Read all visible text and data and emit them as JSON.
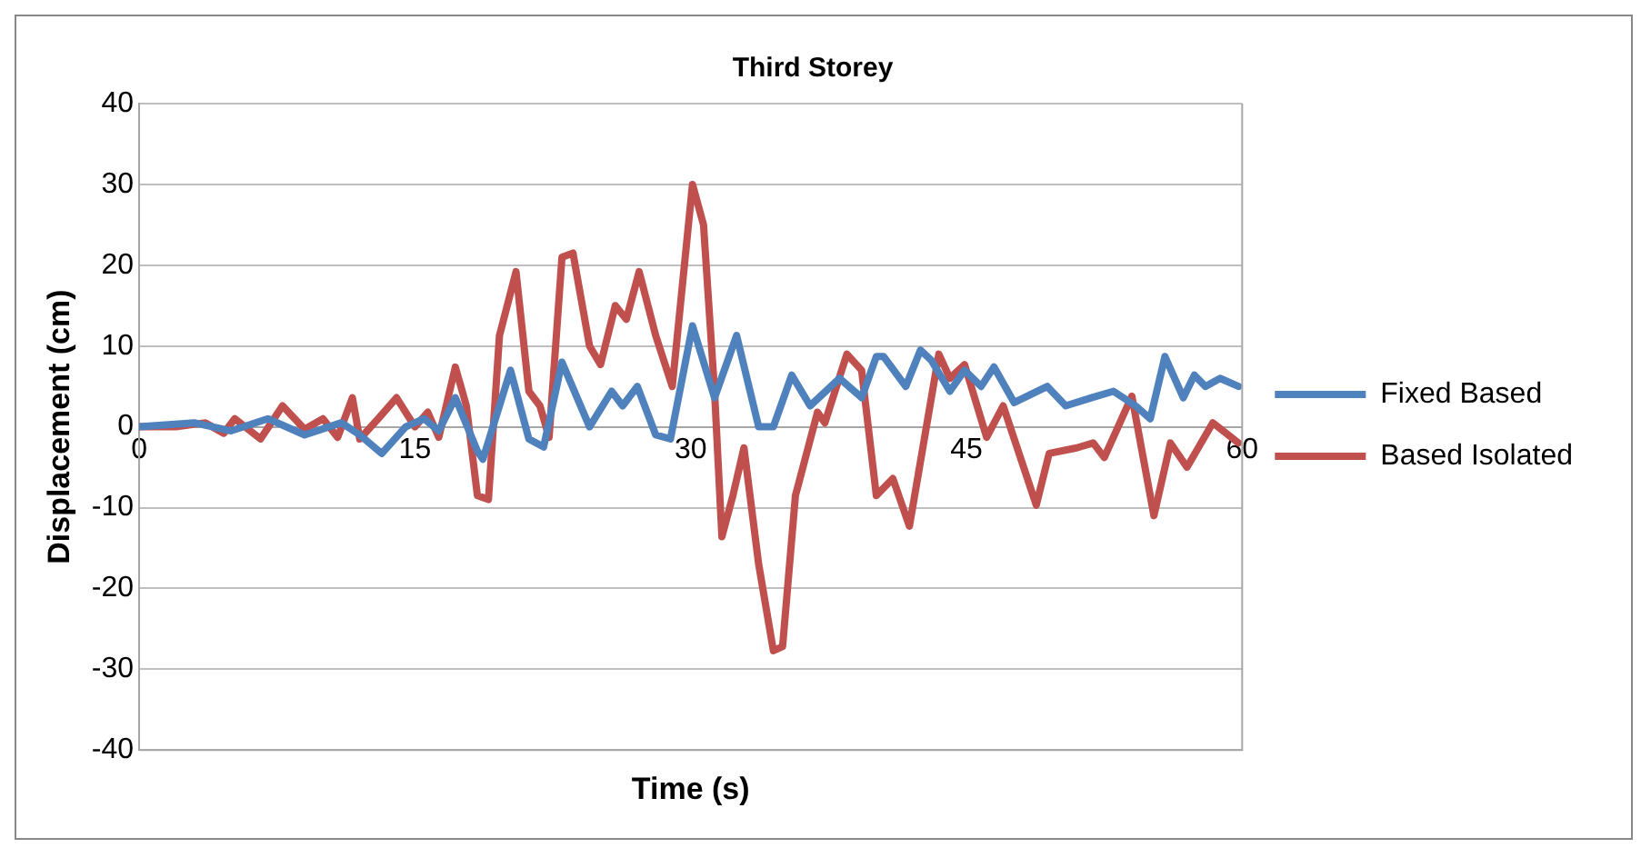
{
  "chart_data": {
    "type": "line",
    "title": "Third Storey",
    "xlabel": "Time (s)",
    "ylabel": "Displacement (cm)",
    "xlim": [
      0,
      60
    ],
    "xticks": [
      0,
      15,
      30,
      45,
      60
    ],
    "ylim": [
      -40,
      40
    ],
    "yticks": [
      -40,
      -30,
      -20,
      -10,
      0,
      10,
      20,
      30,
      40
    ],
    "grid": "y",
    "legend": "right",
    "marker": "none",
    "line_style": "solid",
    "series": [
      {
        "name": "Fixed Based",
        "color": "#4f81bd",
        "x": [
          0,
          3,
          5,
          7,
          9,
          11,
          12,
          13.2,
          14.5,
          15.5,
          16.3,
          17.2,
          18.4,
          18.7,
          20.2,
          21.2,
          22,
          23,
          24.5,
          25.7,
          26.3,
          27.1,
          28.1,
          28.9,
          30.1,
          31.3,
          32.5,
          33.7,
          34.5,
          35.5,
          36.5,
          38.1,
          39.3,
          40.1,
          40.5,
          41.7,
          42.5,
          43.1,
          44.1,
          44.9,
          45.8,
          46.5,
          47.6,
          49.4,
          50.4,
          51.8,
          53,
          54.2,
          55,
          55.8,
          56.8,
          57.4,
          58,
          58.8,
          59.8
        ],
        "values": [
          0,
          0.5,
          -0.5,
          1,
          -1,
          0.5,
          -1,
          -3.3,
          0,
          1,
          -0.5,
          3.6,
          -3,
          -4,
          7,
          -1.5,
          -2.5,
          8,
          0,
          4.4,
          2.6,
          5,
          -1,
          -1.5,
          12.5,
          3.6,
          11.3,
          0,
          0,
          6.4,
          2.6,
          6,
          3.6,
          8.7,
          8.7,
          5,
          9.5,
          8.2,
          4.4,
          7,
          5,
          7.4,
          3,
          5,
          2.6,
          3.6,
          4.4,
          2.6,
          1,
          8.7,
          3.6,
          6.4,
          5,
          6,
          5
        ]
      },
      {
        "name": "Based Isolated",
        "color": "#c0504d",
        "x": [
          0,
          2,
          3.6,
          4.6,
          5.2,
          6.6,
          7.8,
          9,
          10,
          10.8,
          11.6,
          12,
          13,
          14,
          15,
          15.7,
          16.3,
          17.2,
          17.8,
          18.4,
          19,
          19.6,
          20.5,
          21.2,
          21.8,
          22.3,
          23,
          23.6,
          24.5,
          25.1,
          25.9,
          26.5,
          27.2,
          28.1,
          29,
          30.1,
          30.7,
          31.3,
          31.7,
          32.3,
          32.9,
          33.7,
          34.5,
          35,
          35.7,
          36.9,
          37.3,
          38.5,
          39.3,
          40.1,
          41,
          41.9,
          43.5,
          44.1,
          44.9,
          46.1,
          47,
          48.8,
          49.5,
          51,
          51.9,
          52.5,
          54,
          55.2,
          56.1,
          57,
          58.4,
          59.8
        ],
        "values": [
          0,
          0,
          0.5,
          -0.8,
          1,
          -1.5,
          2.6,
          -0.3,
          1,
          -1.3,
          3.6,
          -1.5,
          1,
          3.6,
          0,
          1.8,
          -1.3,
          7.4,
          2.6,
          -8.5,
          -9,
          11.3,
          19.2,
          4.4,
          2.6,
          -1.3,
          21,
          21.5,
          10,
          7.7,
          15,
          13.3,
          19.2,
          11.3,
          5,
          30,
          25,
          4.4,
          -13.6,
          -8.5,
          -2.6,
          -17,
          -27.7,
          -27.2,
          -8.5,
          1.8,
          0.5,
          9,
          7,
          -8.5,
          -6.4,
          -12.3,
          9,
          6,
          7.7,
          -1.3,
          2.6,
          -9.7,
          -3.3,
          -2.6,
          -2,
          -3.8,
          3.8,
          -11,
          -2,
          -5,
          0.5,
          -2
        ]
      }
    ]
  }
}
